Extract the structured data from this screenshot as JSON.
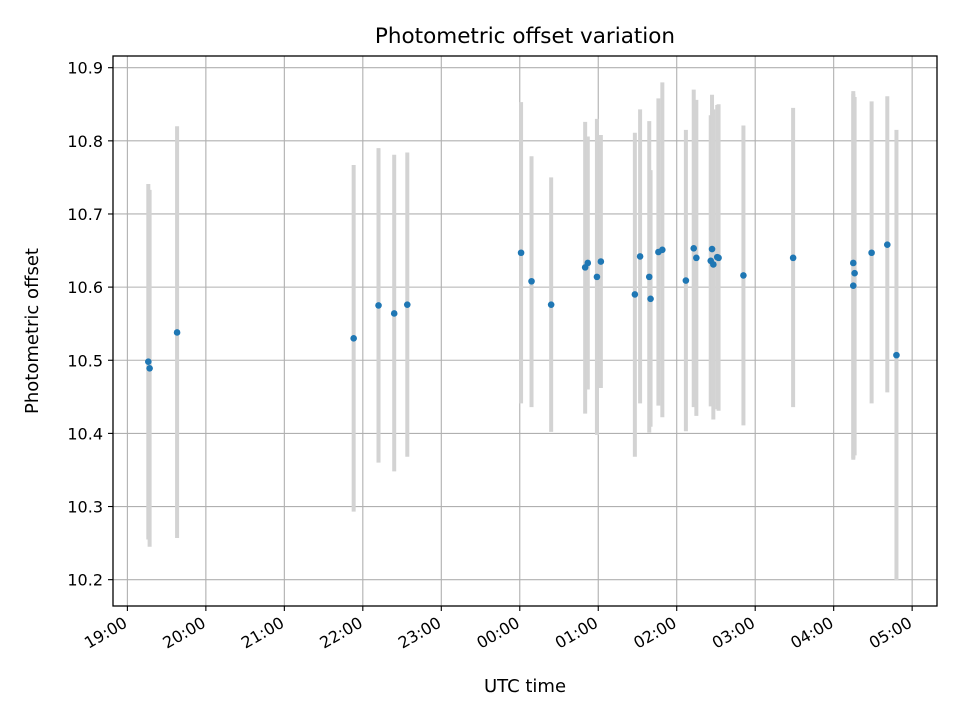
{
  "chart_data": {
    "type": "scatter",
    "title": "Photometric offset variation",
    "xlabel": "UTC time",
    "ylabel": "Photometric offset",
    "x_ticks": [
      "19:00",
      "20:00",
      "21:00",
      "22:00",
      "23:00",
      "00:00",
      "01:00",
      "02:00",
      "03:00",
      "04:00",
      "05:00"
    ],
    "y_ticks": [
      "10.2",
      "10.3",
      "10.4",
      "10.5",
      "10.6",
      "10.7",
      "10.8",
      "10.9"
    ],
    "xlim": [
      "18:49",
      "05:19"
    ],
    "ylim": [
      10.164,
      10.916
    ],
    "grid": true,
    "colors": {
      "points": "#1f77b4",
      "error_bars": "#d3d3d3",
      "grid": "#b0b0b0"
    },
    "points": [
      {
        "x": "19:16",
        "y": 10.498,
        "lo": 10.255,
        "hi": 10.741
      },
      {
        "x": "19:17",
        "y": 10.489,
        "lo": 10.245,
        "hi": 10.733
      },
      {
        "x": "19:38",
        "y": 10.538,
        "lo": 10.257,
        "hi": 10.82
      },
      {
        "x": "21:53",
        "y": 10.53,
        "lo": 10.293,
        "hi": 10.767
      },
      {
        "x": "22:12",
        "y": 10.575,
        "lo": 10.36,
        "hi": 10.79
      },
      {
        "x": "22:24",
        "y": 10.564,
        "lo": 10.348,
        "hi": 10.781
      },
      {
        "x": "22:34",
        "y": 10.576,
        "lo": 10.368,
        "hi": 10.784
      },
      {
        "x": "00:01",
        "y": 10.647,
        "lo": 10.441,
        "hi": 10.853
      },
      {
        "x": "00:09",
        "y": 10.608,
        "lo": 10.436,
        "hi": 10.779
      },
      {
        "x": "00:24",
        "y": 10.576,
        "lo": 10.402,
        "hi": 10.75
      },
      {
        "x": "00:50",
        "y": 10.627,
        "lo": 10.427,
        "hi": 10.826
      },
      {
        "x": "00:52",
        "y": 10.633,
        "lo": 10.46,
        "hi": 10.806
      },
      {
        "x": "00:59",
        "y": 10.614,
        "lo": 10.398,
        "hi": 10.83
      },
      {
        "x": "01:02",
        "y": 10.635,
        "lo": 10.462,
        "hi": 10.808
      },
      {
        "x": "01:28",
        "y": 10.59,
        "lo": 10.368,
        "hi": 10.811
      },
      {
        "x": "01:32",
        "y": 10.642,
        "lo": 10.441,
        "hi": 10.843
      },
      {
        "x": "01:39",
        "y": 10.614,
        "lo": 10.401,
        "hi": 10.827
      },
      {
        "x": "01:40",
        "y": 10.584,
        "lo": 10.409,
        "hi": 10.76
      },
      {
        "x": "01:46",
        "y": 10.648,
        "lo": 10.438,
        "hi": 10.858
      },
      {
        "x": "01:49",
        "y": 10.651,
        "lo": 10.422,
        "hi": 10.88
      },
      {
        "x": "02:07",
        "y": 10.609,
        "lo": 10.403,
        "hi": 10.815
      },
      {
        "x": "02:13",
        "y": 10.653,
        "lo": 10.436,
        "hi": 10.87
      },
      {
        "x": "02:15",
        "y": 10.64,
        "lo": 10.424,
        "hi": 10.856
      },
      {
        "x": "02:26",
        "y": 10.636,
        "lo": 10.437,
        "hi": 10.835
      },
      {
        "x": "02:27",
        "y": 10.652,
        "lo": 10.44,
        "hi": 10.863
      },
      {
        "x": "02:28",
        "y": 10.631,
        "lo": 10.419,
        "hi": 10.843
      },
      {
        "x": "02:31",
        "y": 10.641,
        "lo": 10.433,
        "hi": 10.849
      },
      {
        "x": "02:32",
        "y": 10.64,
        "lo": 10.431,
        "hi": 10.85
      },
      {
        "x": "02:51",
        "y": 10.616,
        "lo": 10.411,
        "hi": 10.821
      },
      {
        "x": "03:29",
        "y": 10.64,
        "lo": 10.436,
        "hi": 10.845
      },
      {
        "x": "04:15",
        "y": 10.633,
        "lo": 10.364,
        "hi": 10.864
      },
      {
        "x": "04:15",
        "y": 10.602,
        "lo": 10.366,
        "hi": 10.868
      },
      {
        "x": "04:16",
        "y": 10.619,
        "lo": 10.37,
        "hi": 10.86
      },
      {
        "x": "04:29",
        "y": 10.647,
        "lo": 10.441,
        "hi": 10.854
      },
      {
        "x": "04:41",
        "y": 10.658,
        "lo": 10.456,
        "hi": 10.861
      },
      {
        "x": "04:48",
        "y": 10.507,
        "lo": 10.199,
        "hi": 10.815
      }
    ]
  }
}
